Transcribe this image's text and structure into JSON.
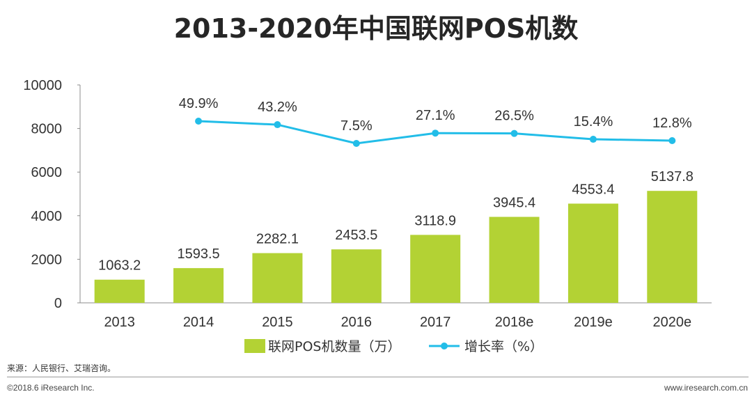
{
  "page": {
    "title": "2013-2020年中国联网POS机数",
    "source": "来源：人民银行、艾瑞咨询。",
    "copyright": "©2018.6 iResearch Inc.",
    "website": "www.iresearch.com.cn"
  },
  "chart_data": {
    "type": "bar",
    "title": "2013-2020年中国联网POS机数",
    "categories": [
      "2013",
      "2014",
      "2015",
      "2016",
      "2017",
      "2018e",
      "2019e",
      "2020e"
    ],
    "ylim": [
      0,
      10000
    ],
    "yticks": [
      "0",
      "2000",
      "4000",
      "6000",
      "8000",
      "10000"
    ],
    "grid": false,
    "legend_position": "bottom",
    "series": [
      {
        "name": "联网POS机数量（万）",
        "type": "bar",
        "color": "#b3d234",
        "values": [
          1063.2,
          1593.5,
          2282.1,
          2453.5,
          3118.9,
          3945.4,
          4553.4,
          5137.8
        ],
        "labels": [
          "1063.2",
          "1593.5",
          "2282.1",
          "2453.5",
          "3118.9",
          "3945.4",
          "4553.4",
          "5137.8"
        ]
      },
      {
        "name": "增长率（%）",
        "type": "line",
        "color": "#22bde8",
        "values": [
          null,
          49.9,
          43.2,
          7.5,
          27.1,
          26.5,
          15.4,
          12.8
        ],
        "labels": [
          "",
          "49.9%",
          "43.2%",
          "7.5%",
          "27.1%",
          "26.5%",
          "15.4%",
          "12.8%"
        ]
      }
    ]
  }
}
